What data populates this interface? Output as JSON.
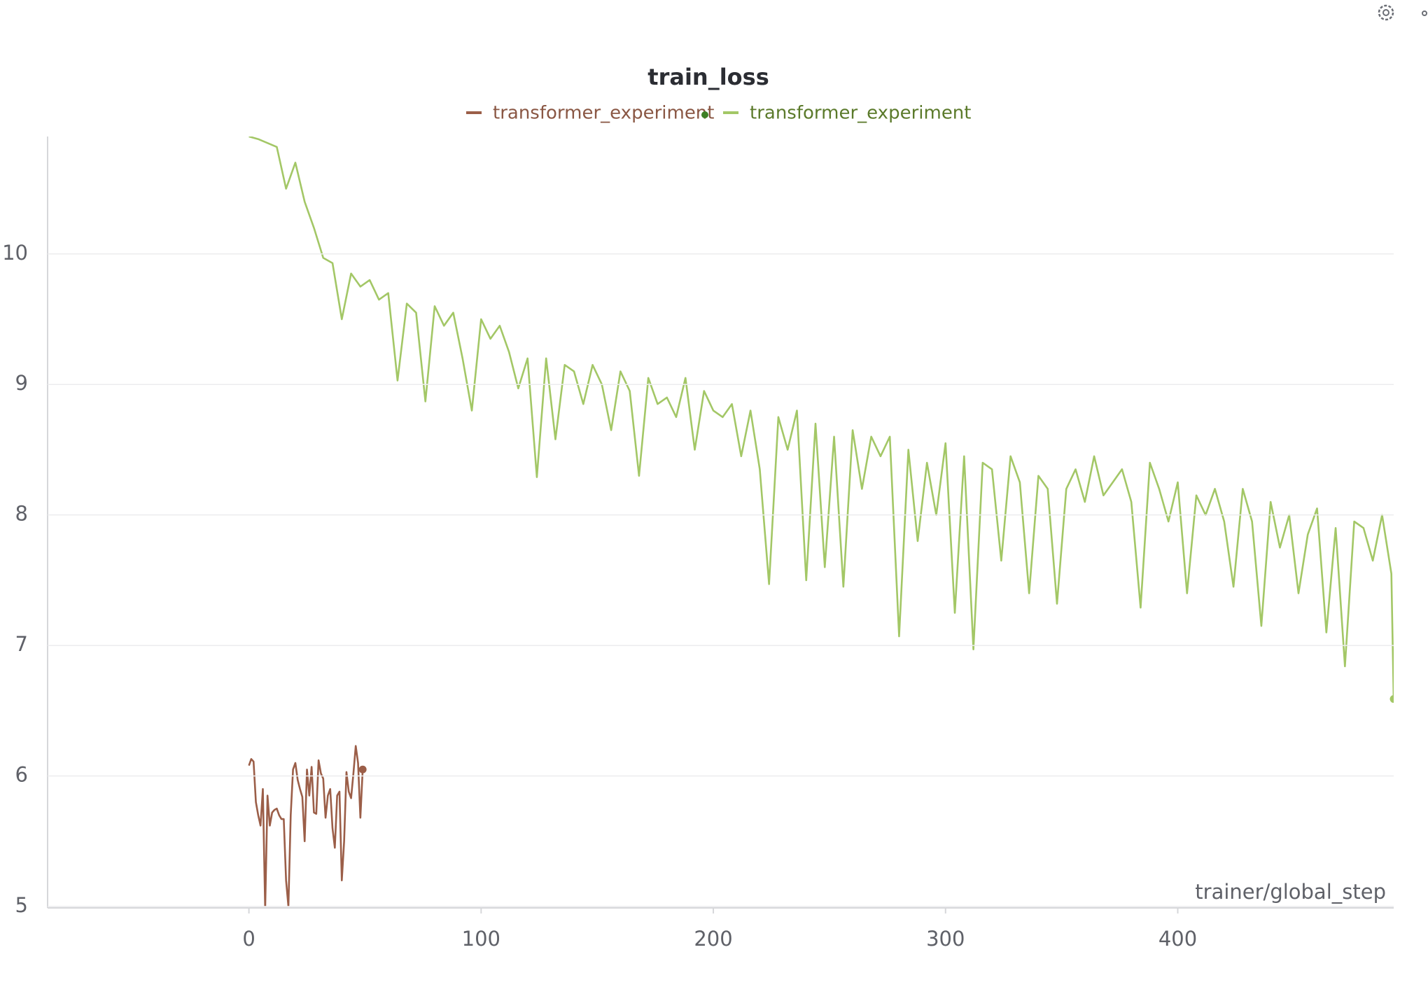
{
  "chart_data": {
    "type": "line",
    "title": "train_loss",
    "x_label": "trainer/global_step",
    "xlim": [
      -86.7,
      493
    ],
    "ylim": [
      5,
      10.9
    ],
    "xticks": [
      0,
      100,
      200,
      300,
      400
    ],
    "yticks": [
      5,
      6,
      7,
      8,
      9,
      10
    ],
    "grid": true,
    "series": [
      {
        "name": "transformer_experiment",
        "color": "#9b5e48",
        "x": [
          0,
          1,
          2,
          3,
          4,
          5,
          6,
          7,
          8,
          9,
          10,
          11,
          12,
          13,
          14,
          15,
          16,
          17,
          18,
          19,
          20,
          21,
          22,
          23,
          24,
          25,
          26,
          27,
          28,
          29,
          30,
          31,
          32,
          33,
          34,
          35,
          36,
          37,
          38,
          39,
          40,
          41,
          42,
          43,
          44,
          45,
          46,
          47,
          48,
          49
        ],
        "values": [
          6.08,
          6.13,
          6.11,
          5.8,
          5.7,
          5.62,
          5.9,
          4.98,
          5.85,
          5.62,
          5.72,
          5.74,
          5.75,
          5.7,
          5.67,
          5.67,
          5.2,
          5.0,
          5.7,
          6.05,
          6.1,
          5.97,
          5.9,
          5.84,
          5.5,
          6.05,
          5.85,
          6.07,
          5.72,
          5.71,
          6.12,
          6.02,
          5.98,
          5.68,
          5.85,
          5.9,
          5.6,
          5.45,
          5.85,
          5.88,
          5.2,
          5.5,
          6.03,
          5.88,
          5.83,
          6.02,
          6.23,
          6.1,
          5.68,
          6.05
        ]
      },
      {
        "name": "transformer_experiment",
        "color": "#a3c766",
        "x": [
          0,
          4,
          8,
          12,
          16,
          20,
          24,
          28,
          32,
          36,
          40,
          44,
          48,
          52,
          56,
          60,
          64,
          68,
          72,
          76,
          80,
          84,
          88,
          92,
          96,
          100,
          104,
          108,
          112,
          116,
          120,
          124,
          128,
          132,
          136,
          140,
          144,
          148,
          152,
          156,
          160,
          164,
          168,
          172,
          176,
          180,
          184,
          188,
          192,
          196,
          200,
          204,
          208,
          212,
          216,
          220,
          224,
          228,
          232,
          236,
          240,
          244,
          248,
          252,
          256,
          260,
          264,
          268,
          272,
          276,
          280,
          284,
          288,
          292,
          296,
          300,
          304,
          308,
          312,
          316,
          320,
          324,
          328,
          332,
          336,
          340,
          344,
          348,
          352,
          356,
          360,
          364,
          368,
          372,
          376,
          380,
          384,
          388,
          392,
          396,
          400,
          404,
          408,
          412,
          416,
          420,
          424,
          428,
          432,
          436,
          440,
          444,
          448,
          452,
          456,
          460,
          464,
          468,
          472,
          476,
          480,
          484,
          488,
          492,
          493
        ],
        "values": [
          10.9,
          10.88,
          10.85,
          10.82,
          10.5,
          10.7,
          10.4,
          10.2,
          9.97,
          9.93,
          9.5,
          9.85,
          9.75,
          9.8,
          9.65,
          9.7,
          9.03,
          9.62,
          9.55,
          8.87,
          9.6,
          9.45,
          9.55,
          9.2,
          8.8,
          9.5,
          9.35,
          9.45,
          9.25,
          8.97,
          9.2,
          8.29,
          9.2,
          8.58,
          9.15,
          9.1,
          8.85,
          9.15,
          9.0,
          8.65,
          9.1,
          8.95,
          8.3,
          9.05,
          8.85,
          8.9,
          8.75,
          9.05,
          8.5,
          8.95,
          8.8,
          8.75,
          8.85,
          8.45,
          8.8,
          8.35,
          7.47,
          8.75,
          8.5,
          8.8,
          7.5,
          8.7,
          7.6,
          8.6,
          7.45,
          8.65,
          8.2,
          8.6,
          8.45,
          8.6,
          7.07,
          8.5,
          7.8,
          8.4,
          8.0,
          8.55,
          7.25,
          8.45,
          6.97,
          8.4,
          8.35,
          7.65,
          8.45,
          8.25,
          7.4,
          8.3,
          8.2,
          7.32,
          8.2,
          8.35,
          8.1,
          8.45,
          8.15,
          8.25,
          8.35,
          8.1,
          7.29,
          8.4,
          8.2,
          7.95,
          8.25,
          7.4,
          8.15,
          8.0,
          8.2,
          7.95,
          7.45,
          8.2,
          7.95,
          7.15,
          8.1,
          7.75,
          8.0,
          7.4,
          7.85,
          8.05,
          7.1,
          7.9,
          6.84,
          7.95,
          7.9,
          7.65,
          8.0,
          7.55,
          6.59
        ]
      }
    ]
  }
}
